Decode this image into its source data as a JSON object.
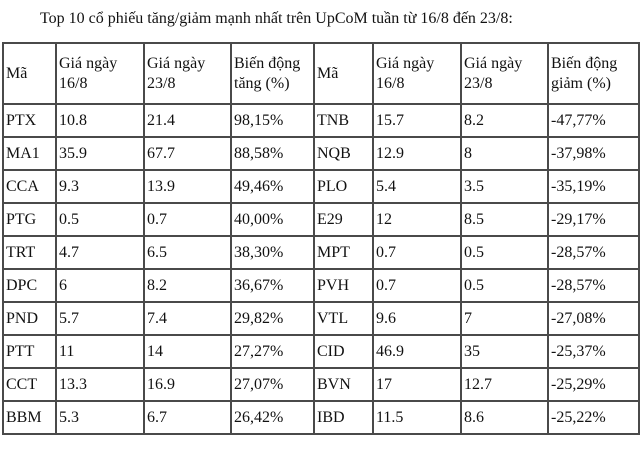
{
  "title": "Top 10 cổ phiếu tăng/giảm mạnh nhất trên UpCoM tuần từ 16/8 đến 23/8:",
  "headers": [
    "Mã",
    "Giá ngày 16/8",
    "Giá ngày 23/8",
    "Biến động tăng (%)",
    "Mã",
    "Giá ngày 16/8",
    "Giá ngày 23/8",
    "Biến động giảm (%)"
  ],
  "rows": [
    [
      "PTX",
      "10.8",
      "21.4",
      "98,15%",
      "TNB",
      "15.7",
      "8.2",
      "-47,77%"
    ],
    [
      "MA1",
      "35.9",
      "67.7",
      "88,58%",
      "NQB",
      "12.9",
      "8",
      "-37,98%"
    ],
    [
      "CCA",
      "9.3",
      "13.9",
      "49,46%",
      "PLO",
      "5.4",
      "3.5",
      "-35,19%"
    ],
    [
      "PTG",
      "0.5",
      "0.7",
      "40,00%",
      "E29",
      "12",
      "8.5",
      "-29,17%"
    ],
    [
      "TRT",
      "4.7",
      "6.5",
      "38,30%",
      "MPT",
      "0.7",
      "0.5",
      "-28,57%"
    ],
    [
      "DPC",
      "6",
      "8.2",
      "36,67%",
      "PVH",
      "0.7",
      "0.5",
      "-28,57%"
    ],
    [
      "PND",
      "5.7",
      "7.4",
      "29,82%",
      "VTL",
      "9.6",
      "7",
      "-27,08%"
    ],
    [
      "PTT",
      "11",
      "14",
      "27,27%",
      "CID",
      "46.9",
      "35",
      "-25,37%"
    ],
    [
      "CCT",
      "13.3",
      "16.9",
      "27,07%",
      "BVN",
      "17",
      "12.7",
      "-25,29%"
    ],
    [
      "BBM",
      "5.3",
      "6.7",
      "26,42%",
      "IBD",
      "11.5",
      "8.6",
      "-25,22%"
    ]
  ]
}
